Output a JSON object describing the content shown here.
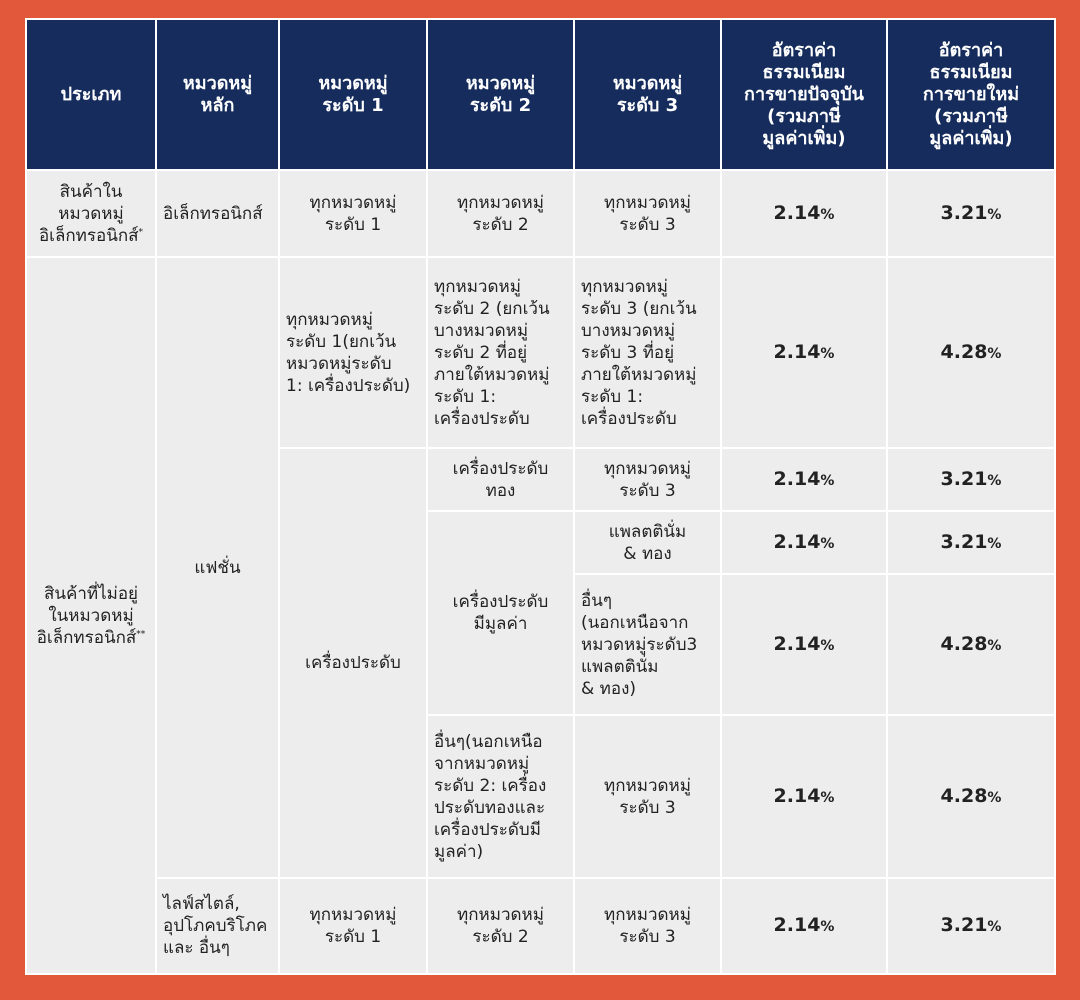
{
  "header": {
    "type": "ประเภท",
    "main_category": "หมวดหมู่\nหลัก",
    "level1": "หมวดหมู่\nระดับ 1",
    "level2": "หมวดหมู่\nระดับ 2",
    "level3": "หมวดหมู่\nระดับ 3",
    "current_rate": "อัตราค่า\nธรรมเนียม\nการขายปัจจุบัน\n(รวมภาษี\nมูลค่าเพิ่ม)",
    "new_rate": "อัตราค่า\nธรรมเนียม\nการขายใหม่\n(รวมภาษี\nมูลค่าเพิ่ม)"
  },
  "percent_sign": "%",
  "rows": [
    {
      "type": "สินค้าใน\nหมวดหมู่\nอิเล็กทรอนิกส์",
      "type_mark": "*",
      "main": "อิเล็กทรอนิกส์",
      "level1": "ทุกหมวดหมู่\nระดับ 1",
      "level2": "ทุกหมวดหมู่\nระดับ 2",
      "level3": "ทุกหมวดหมู่\nระดับ 3",
      "current": "2.14",
      "new": "3.21"
    },
    {
      "type": "สินค้าที่ไม่อยู่\nในหมวดหมู่\nอิเล็กทรอนิกส์",
      "type_mark": "**",
      "main": "แฟชั่น",
      "level1": "ทุกหมวดหมู่\nระดับ 1(ยกเว้น\nหมวดหมู่ระดับ\n1: เครื่องประดับ)",
      "level2": "ทุกหมวดหมู่\nระดับ 2 (ยกเว้น\nบางหมวดหมู่\nระดับ 2 ที่อยู่\nภายใต้หมวดหมู่\nระดับ 1:\nเครื่องประดับ",
      "level3": "ทุกหมวดหมู่\nระดับ 3 (ยกเว้น\nบางหมวดหมู่\nระดับ 3 ที่อยู่\nภายใต้หมวดหมู่\nระดับ 1:\nเครื่องประดับ",
      "current": "2.14",
      "new": "4.28"
    },
    {
      "level1": "เครื่องประดับ",
      "level2": "เครื่องประดับ\nทอง",
      "level3": "ทุกหมวดหมู่\nระดับ 3",
      "current": "2.14",
      "new": "3.21"
    },
    {
      "level2": "เครื่องประดับ\nมีมูลค่า",
      "level3": "แพลตตินั่ม\n& ทอง",
      "current": "2.14",
      "new": "3.21"
    },
    {
      "level3": "อื่นๆ\n(นอกเหนือจาก\nหมวดหมู่ระดับ3\nแพลตตินั่ม\n& ทอง)",
      "current": "2.14",
      "new": "4.28"
    },
    {
      "level2": "อื่นๆ(นอกเหนือ\nจากหมวดหมู่\nระดับ 2: เครื่อง\nประดับทองและ\nเครื่องประดับมี\nมูลค่า)",
      "level3": "ทุกหมวดหมู่\nระดับ 3",
      "current": "2.14",
      "new": "4.28"
    },
    {
      "main": "ไลฟ์สไตล์,\nอุปโภคบริโภค\nและ อื่นๆ",
      "level1": "ทุกหมวดหมู่\nระดับ 1",
      "level2": "ทุกหมวดหมู่\nระดับ 2",
      "level3": "ทุกหมวดหมู่\nระดับ 3",
      "current": "2.14",
      "new": "3.21"
    }
  ]
}
